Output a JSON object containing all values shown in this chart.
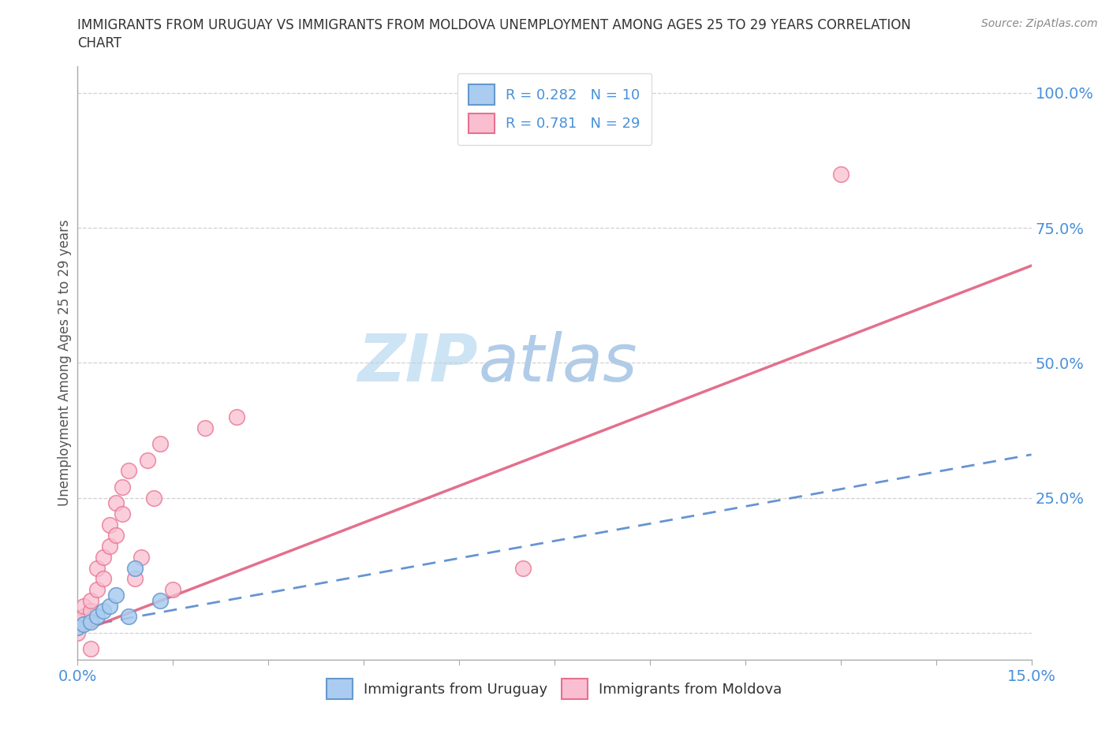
{
  "title_line1": "IMMIGRANTS FROM URUGUAY VS IMMIGRANTS FROM MOLDOVA UNEMPLOYMENT AMONG AGES 25 TO 29 YEARS CORRELATION",
  "title_line2": "CHART",
  "source_text": "Source: ZipAtlas.com",
  "ylabel": "Unemployment Among Ages 25 to 29 years",
  "xlim": [
    0.0,
    0.15
  ],
  "ylim": [
    -0.05,
    1.05
  ],
  "uruguay_color": "#aaccf0",
  "moldova_color": "#f9bfd0",
  "uruguay_edge": "#6699cc",
  "moldova_edge": "#e87090",
  "uruguay_line_color": "#5588cc",
  "moldova_line_color": "#e06080",
  "uruguay_R": 0.282,
  "uruguay_N": 10,
  "moldova_R": 0.781,
  "moldova_N": 29,
  "legend_color": "#4a90d9",
  "watermark_ZIP": "ZIP",
  "watermark_atlas": "atlas",
  "watermark_color_ZIP": "#d8eaf8",
  "watermark_color_atlas": "#b8d8f0",
  "grid_color": "#cccccc",
  "background_color": "#ffffff",
  "scatter_size": 200,
  "uruguay_x": [
    0.0,
    0.001,
    0.002,
    0.003,
    0.004,
    0.005,
    0.006,
    0.008,
    0.009,
    0.013
  ],
  "uruguay_y": [
    0.01,
    0.015,
    0.02,
    0.03,
    0.04,
    0.05,
    0.07,
    0.03,
    0.12,
    0.06
  ],
  "moldova_x": [
    0.0,
    0.0,
    0.001,
    0.001,
    0.002,
    0.002,
    0.003,
    0.003,
    0.004,
    0.004,
    0.005,
    0.005,
    0.006,
    0.006,
    0.007,
    0.007,
    0.008,
    0.009,
    0.01,
    0.011,
    0.012,
    0.013,
    0.015,
    0.02,
    0.025,
    0.07,
    0.12,
    0.002,
    0.0
  ],
  "moldova_y": [
    0.01,
    0.02,
    0.03,
    0.05,
    0.04,
    0.06,
    0.08,
    0.12,
    0.1,
    0.14,
    0.16,
    0.2,
    0.18,
    0.24,
    0.22,
    0.27,
    0.3,
    0.1,
    0.14,
    0.32,
    0.25,
    0.35,
    0.08,
    0.38,
    0.4,
    0.12,
    0.85,
    -0.03,
    0.0
  ],
  "uru_trend_x": [
    0.0,
    0.15
  ],
  "uru_trend_y": [
    0.01,
    0.33
  ],
  "mol_trend_x": [
    0.0,
    0.15
  ],
  "mol_trend_y": [
    0.0,
    0.68
  ]
}
